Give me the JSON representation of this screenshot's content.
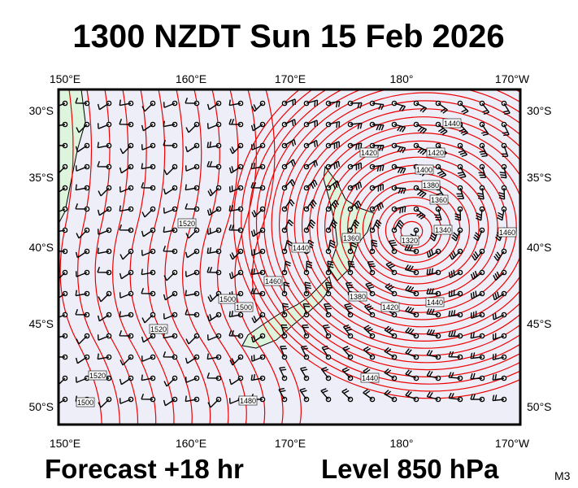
{
  "header": {
    "title": "1300 NZDT Sun 15 Feb 2026"
  },
  "axes": {
    "lon": [
      "150°E",
      "160°E",
      "170°E",
      "180°",
      "170°W"
    ],
    "lat": [
      "30°S",
      "35°S",
      "40°S",
      "45°S",
      "50°S"
    ]
  },
  "contour_labels": [
    "1440",
    "1420",
    "1420",
    "1400",
    "1380",
    "1360",
    "1360",
    "1320",
    "1340",
    "1520",
    "1440",
    "1460",
    "1500",
    "1500",
    "1380",
    "1420",
    "1440",
    "1460",
    "1520",
    "1520",
    "1500",
    "1480",
    "1440"
  ],
  "footer": {
    "forecast": "Forecast +18 hr",
    "level": "Level 850 hPa",
    "model": "M3"
  }
}
